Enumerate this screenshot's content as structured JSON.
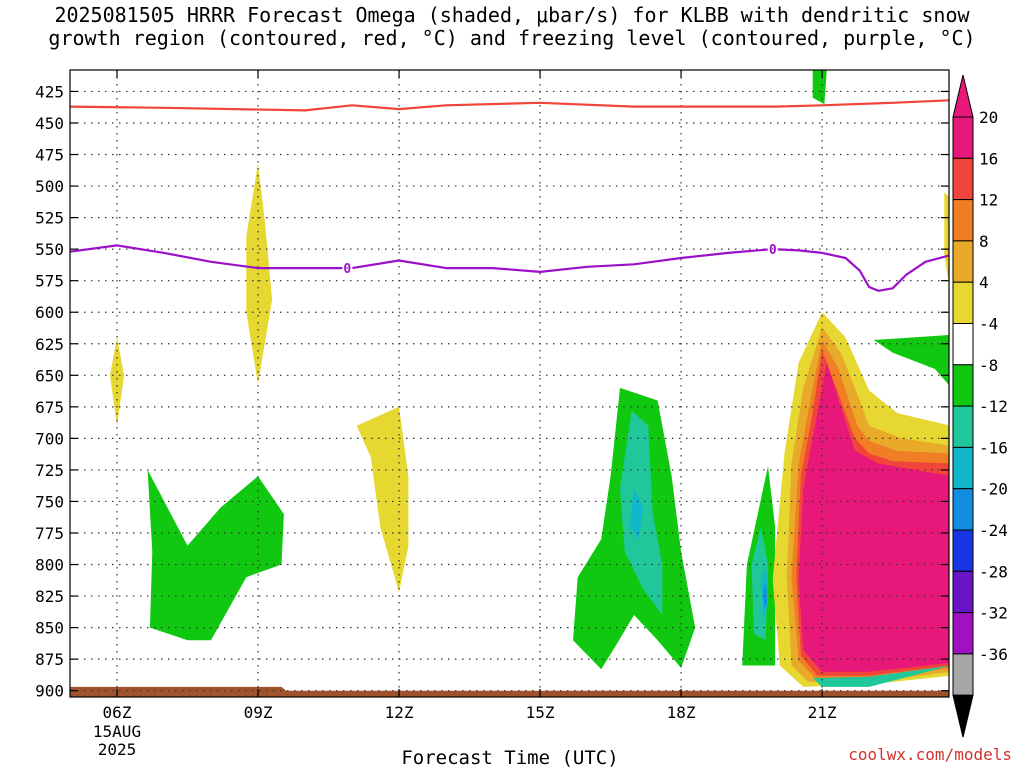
{
  "title_line1": "2025081505 HRRR Forecast Omega (shaded, μbar/s) for KLBB with dendritic snow",
  "title_line2": "growth region (contoured, red, °C) and freezing level (contoured, purple, °C)",
  "credit": "coolwx.com/models",
  "chart_data": {
    "type": "area",
    "title": "2025081505 HRRR Forecast Omega (shaded, μbar/s) for KLBB with dendritic snow growth region (contoured, red, °C) and freezing level (contoured, purple, °C)",
    "xlabel": "Forecast Time (UTC)",
    "ylabel": "",
    "x_unit": "forecast hour (UTC)",
    "xlim": [
      5,
      23.7
    ],
    "ylim": [
      408,
      905
    ],
    "y_inverted": true,
    "x_ticks": [
      {
        "hour": 6,
        "label": "06Z",
        "sub": [
          "15AUG",
          "2025"
        ]
      },
      {
        "hour": 9,
        "label": "09Z",
        "sub": []
      },
      {
        "hour": 12,
        "label": "12Z",
        "sub": []
      },
      {
        "hour": 15,
        "label": "15Z",
        "sub": []
      },
      {
        "hour": 18,
        "label": "18Z",
        "sub": []
      },
      {
        "hour": 21,
        "label": "21Z",
        "sub": []
      }
    ],
    "y_ticks": [
      425,
      450,
      475,
      500,
      525,
      550,
      575,
      600,
      625,
      650,
      675,
      700,
      725,
      750,
      775,
      800,
      825,
      850,
      875,
      900
    ],
    "grid": true,
    "colorbar": {
      "labels": [
        "20",
        "16",
        "12",
        "8",
        "4",
        "-4",
        "-8",
        "-12",
        "-16",
        "-20",
        "-24",
        "-28",
        "-32",
        "-36"
      ],
      "colors": [
        "#e8177a",
        "#f0443c",
        "#f07e25",
        "#e9aa2a",
        "#e6d731",
        "#ffffff",
        "#11c811",
        "#20c79a",
        "#13b7cc",
        "#118ee0",
        "#1735e0",
        "#6a14c8",
        "#a012c0",
        "#a6a6a6"
      ],
      "top_arrow_color": "#e8177a",
      "bottom_arrow_color": "#000000"
    },
    "series": [
      {
        "name": "dendritic snow growth region",
        "kind": "line",
        "color": "#f0443c",
        "points": [
          [
            5,
            437
          ],
          [
            7,
            438
          ],
          [
            10,
            440
          ],
          [
            11,
            436
          ],
          [
            12,
            439
          ],
          [
            13,
            436
          ],
          [
            15,
            434
          ],
          [
            17,
            437
          ],
          [
            18,
            437
          ],
          [
            20,
            437
          ],
          [
            21,
            436
          ],
          [
            22.5,
            434
          ],
          [
            23.7,
            432
          ]
        ]
      },
      {
        "name": "freezing level",
        "kind": "line",
        "color": "#9b10c9",
        "label": "0",
        "label_points": [
          [
            10.9,
            565
          ],
          [
            19.95,
            550
          ]
        ],
        "points": [
          [
            5,
            552
          ],
          [
            6,
            547
          ],
          [
            7,
            553
          ],
          [
            8,
            560
          ],
          [
            9,
            565
          ],
          [
            11,
            565
          ],
          [
            12,
            559
          ],
          [
            13,
            565
          ],
          [
            14,
            565
          ],
          [
            15,
            568
          ],
          [
            16,
            564
          ],
          [
            17,
            562
          ],
          [
            18,
            557
          ],
          [
            19,
            553
          ],
          [
            19.95,
            550
          ],
          [
            20.5,
            551
          ],
          [
            21,
            553
          ],
          [
            21.5,
            557
          ],
          [
            21.8,
            567
          ],
          [
            22,
            580
          ],
          [
            22.2,
            583
          ],
          [
            22.5,
            581
          ],
          [
            22.8,
            570
          ],
          [
            23.2,
            560
          ],
          [
            23.7,
            555
          ]
        ]
      }
    ],
    "shaded_regions": [
      {
        "value": 4,
        "color": "#e6d731",
        "points": [
          [
            9,
            482
          ],
          [
            9.15,
            530
          ],
          [
            9.3,
            590
          ],
          [
            9,
            657
          ],
          [
            8.75,
            600
          ],
          [
            8.75,
            540
          ]
        ]
      },
      {
        "value": 4,
        "color": "#e6d731",
        "points": [
          [
            6,
            620
          ],
          [
            6.15,
            650
          ],
          [
            6,
            690
          ],
          [
            5.85,
            650
          ]
        ]
      },
      {
        "value": 4,
        "color": "#e6d731",
        "points": [
          [
            11.1,
            690
          ],
          [
            12,
            675
          ],
          [
            12.2,
            730
          ],
          [
            12.2,
            785
          ],
          [
            12,
            822
          ],
          [
            11.6,
            770
          ],
          [
            11.4,
            715
          ]
        ]
      },
      {
        "value": 4,
        "color": "#e6d731",
        "points": [
          [
            23.6,
            505
          ],
          [
            23.75,
            510
          ],
          [
            23.75,
            590
          ],
          [
            23.6,
            555
          ]
        ]
      },
      {
        "value": -4,
        "color": "#11c811",
        "points": [
          [
            6.65,
            725
          ],
          [
            7.5,
            785
          ],
          [
            8.2,
            755
          ],
          [
            9,
            730
          ],
          [
            9.55,
            760
          ],
          [
            9.5,
            800
          ],
          [
            8.75,
            810
          ],
          [
            8,
            860
          ],
          [
            7.5,
            860
          ],
          [
            6.7,
            850
          ],
          [
            6.75,
            790
          ]
        ]
      },
      {
        "value": -4,
        "color": "#11c811",
        "points": [
          [
            16.7,
            660
          ],
          [
            17.5,
            670
          ],
          [
            17.8,
            730
          ],
          [
            18,
            790
          ],
          [
            18.3,
            850
          ],
          [
            18,
            882
          ],
          [
            17.5,
            860
          ],
          [
            17,
            840
          ],
          [
            16.6,
            865
          ],
          [
            16.3,
            883
          ],
          [
            15.7,
            860
          ],
          [
            15.8,
            810
          ],
          [
            16.3,
            780
          ],
          [
            16.5,
            730
          ]
        ]
      },
      {
        "value": -4,
        "color": "#11c811",
        "points": [
          [
            19.85,
            722
          ],
          [
            20,
            770
          ],
          [
            20,
            880
          ],
          [
            19.3,
            880
          ],
          [
            19.4,
            800
          ]
        ]
      },
      {
        "value": -4,
        "color": "#11c811",
        "points": [
          [
            20.8,
            408
          ],
          [
            21.1,
            408
          ],
          [
            21.05,
            435
          ],
          [
            20.8,
            430
          ]
        ]
      },
      {
        "value": -4,
        "color": "#11c811",
        "points": [
          [
            22.1,
            622
          ],
          [
            23.75,
            618
          ],
          [
            23.75,
            660
          ],
          [
            23.4,
            645
          ],
          [
            22.5,
            632
          ]
        ]
      },
      {
        "value": -8,
        "color": "#20c79a",
        "points": [
          [
            16.95,
            678
          ],
          [
            17.3,
            690
          ],
          [
            17.4,
            760
          ],
          [
            17.6,
            800
          ],
          [
            17.6,
            840
          ],
          [
            17.2,
            820
          ],
          [
            16.8,
            790
          ],
          [
            16.7,
            740
          ]
        ]
      },
      {
        "value": -8,
        "color": "#20c79a",
        "points": [
          [
            19.7,
            770
          ],
          [
            19.85,
            800
          ],
          [
            19.8,
            860
          ],
          [
            19.55,
            855
          ],
          [
            19.5,
            800
          ]
        ]
      },
      {
        "value": -12,
        "color": "#13b7cc",
        "points": [
          [
            17,
            740
          ],
          [
            17.2,
            755
          ],
          [
            17.1,
            780
          ],
          [
            16.9,
            770
          ]
        ]
      },
      {
        "value": -12,
        "color": "#13b7cc",
        "points": [
          [
            19.8,
            800
          ],
          [
            19.85,
            830
          ],
          [
            19.75,
            845
          ],
          [
            19.7,
            815
          ]
        ]
      },
      {
        "value": -16,
        "color": "#118ee0",
        "points": [
          [
            19.8,
            815
          ],
          [
            19.83,
            830
          ],
          [
            19.77,
            835
          ],
          [
            19.75,
            820
          ]
        ]
      },
      {
        "value": 4,
        "color": "#e6d731",
        "points": [
          [
            21,
            600
          ],
          [
            21.5,
            620
          ],
          [
            22,
            662
          ],
          [
            22.6,
            680
          ],
          [
            23.75,
            690
          ],
          [
            23.75,
            888
          ],
          [
            22,
            895
          ],
          [
            20.6,
            897
          ],
          [
            20.1,
            880
          ],
          [
            19.95,
            812
          ],
          [
            20.2,
            712
          ],
          [
            20.5,
            640
          ]
        ]
      },
      {
        "value": 8,
        "color": "#e9aa2a",
        "points": [
          [
            21,
            612
          ],
          [
            21.4,
            632
          ],
          [
            21.8,
            670
          ],
          [
            22,
            690
          ],
          [
            22.7,
            700
          ],
          [
            23.75,
            706
          ],
          [
            23.75,
            885
          ],
          [
            22,
            893
          ],
          [
            20.7,
            893
          ],
          [
            20.35,
            880
          ],
          [
            20.25,
            810
          ],
          [
            20.35,
            720
          ],
          [
            20.6,
            660
          ]
        ]
      },
      {
        "value": 12,
        "color": "#f07e25",
        "points": [
          [
            21,
            622
          ],
          [
            21.35,
            645
          ],
          [
            21.75,
            690
          ],
          [
            22,
            702
          ],
          [
            22.6,
            710
          ],
          [
            23.75,
            712
          ],
          [
            23.75,
            882
          ],
          [
            22,
            890
          ],
          [
            20.85,
            890
          ],
          [
            20.5,
            876
          ],
          [
            20.35,
            810
          ],
          [
            20.5,
            720
          ],
          [
            20.75,
            670
          ]
        ]
      },
      {
        "value": 16,
        "color": "#f0443c",
        "points": [
          [
            21,
            630
          ],
          [
            21.3,
            660
          ],
          [
            21.7,
            700
          ],
          [
            22,
            712
          ],
          [
            22.5,
            718
          ],
          [
            23.75,
            720
          ],
          [
            23.75,
            880
          ],
          [
            22,
            888
          ],
          [
            20.9,
            888
          ],
          [
            20.55,
            872
          ],
          [
            20.45,
            810
          ],
          [
            20.55,
            730
          ],
          [
            20.8,
            680
          ]
        ]
      },
      {
        "value": 20,
        "color": "#e8177a",
        "points": [
          [
            21.1,
            640
          ],
          [
            21.7,
            710
          ],
          [
            22.2,
            720
          ],
          [
            23.75,
            730
          ],
          [
            23.75,
            878
          ],
          [
            22,
            885
          ],
          [
            21,
            885
          ],
          [
            20.6,
            868
          ],
          [
            20.5,
            812
          ],
          [
            20.6,
            740
          ],
          [
            20.85,
            690
          ]
        ]
      },
      {
        "value": -8,
        "color": "#20c79a",
        "points": [
          [
            23.75,
            880
          ],
          [
            22,
            897
          ],
          [
            21,
            897
          ],
          [
            20.8,
            890
          ],
          [
            22,
            889
          ]
        ]
      }
    ],
    "ground_strip": {
      "label": "terrain",
      "color": "#a0522d",
      "points": [
        [
          5,
          897
        ],
        [
          9.5,
          897
        ],
        [
          9.6,
          900
        ],
        [
          23.7,
          900
        ],
        [
          23.7,
          905
        ],
        [
          5,
          905
        ]
      ]
    }
  }
}
